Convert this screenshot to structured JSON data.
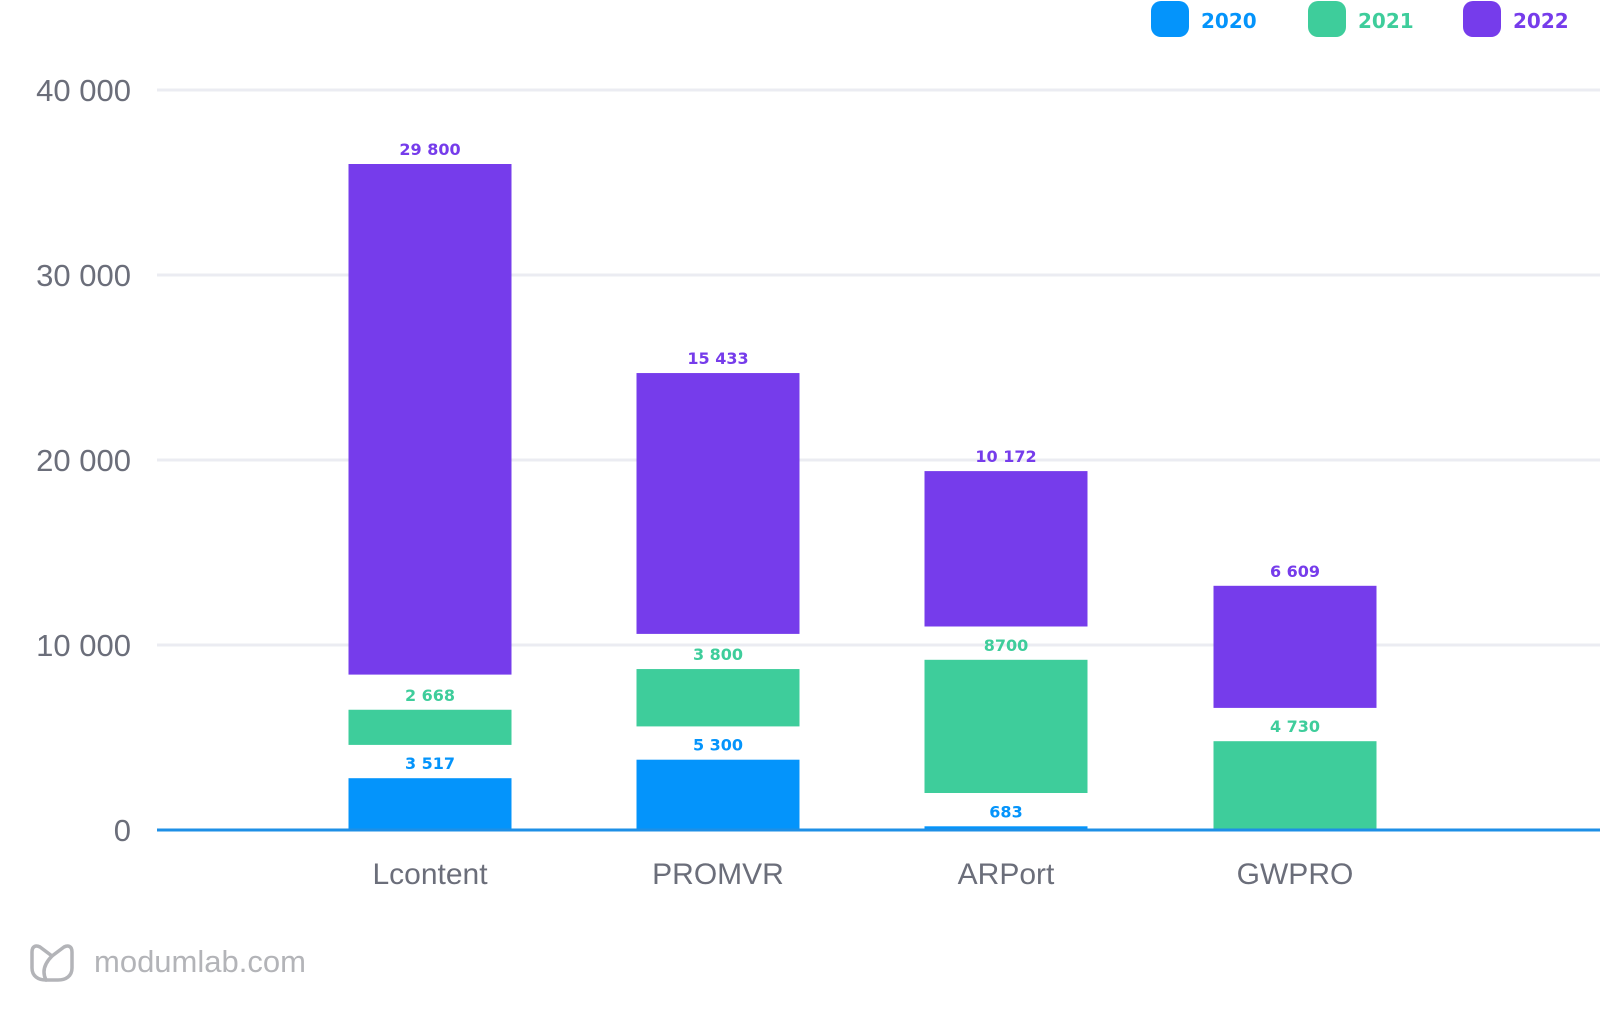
{
  "chart_data": {
    "type": "bar",
    "stacked": true,
    "title": "",
    "xlabel": "",
    "ylabel": "",
    "ylim": [
      0,
      40000
    ],
    "yticks": [
      0,
      10000,
      20000,
      30000,
      40000
    ],
    "ytick_labels": [
      "0",
      "10 000",
      "20 000",
      "30 000",
      "40 000"
    ],
    "grid": true,
    "legend_position": "top-right",
    "categories": [
      "Lcontent",
      "PROMVR",
      "ARPort",
      "GWPRO"
    ],
    "series": [
      {
        "name": "2020",
        "color": "#0494fb",
        "values": [
          3517,
          5300,
          683,
          null
        ],
        "labels": [
          "3 517",
          "5 300",
          "683",
          ""
        ],
        "visual_ranges": [
          [
            0,
            2800
          ],
          [
            0,
            3800
          ],
          [
            0,
            200
          ],
          null
        ]
      },
      {
        "name": "2021",
        "color": "#3ecd9b",
        "values": [
          2668,
          3800,
          8700,
          4730
        ],
        "labels": [
          "2 668",
          "3 800",
          "8700",
          "4 730"
        ],
        "visual_ranges": [
          [
            4600,
            6500
          ],
          [
            5600,
            8700
          ],
          [
            2000,
            9200
          ],
          [
            0,
            4800
          ]
        ]
      },
      {
        "name": "2022",
        "color": "#763ceb",
        "values": [
          29800,
          15433,
          10172,
          6609
        ],
        "labels": [
          "29 800",
          "15 433",
          "10 172",
          "6 609"
        ],
        "visual_ranges": [
          [
            8400,
            36000
          ],
          [
            10600,
            24700
          ],
          [
            11000,
            19400
          ],
          [
            6600,
            13200
          ]
        ]
      }
    ]
  },
  "colors": {
    "axis": "#1e8fe6",
    "grid": "#ebecf2",
    "tick_text": "#6b6e7a",
    "watermark": "#b3b4b8"
  },
  "watermark": {
    "icon": "leaf-logo-icon",
    "text": "modumlab.com"
  }
}
